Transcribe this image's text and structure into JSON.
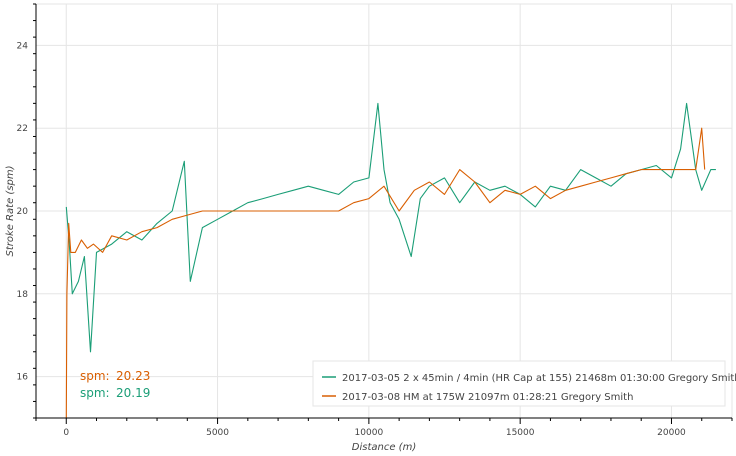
{
  "chart_data": {
    "type": "line",
    "xlabel": "Distance (m)",
    "ylabel": "Stroke Rate (spm)",
    "xlim": [
      -1000,
      22000
    ],
    "ylim": [
      15,
      25
    ],
    "x_ticks": [
      0,
      5000,
      10000,
      15000,
      20000
    ],
    "x_tick_labels": [
      "0",
      "5000",
      "10000",
      "15000",
      "20000"
    ],
    "y_ticks": [
      16,
      18,
      20,
      22,
      24
    ],
    "y_tick_labels": [
      "16",
      "18",
      "20",
      "22",
      "24"
    ],
    "grid": true,
    "legend_position": "bottom-right",
    "series": [
      {
        "name": "2017-03-05 2 x 45min / 4min (HR Cap at 155) 21468m 01:30:00 Gregory Smith",
        "color": "#1b9e77",
        "x": [
          0,
          100,
          200,
          400,
          600,
          800,
          1000,
          1500,
          2000,
          2500,
          3000,
          3500,
          3900,
          4100,
          4500,
          5000,
          5500,
          6000,
          6500,
          7000,
          7500,
          8000,
          8500,
          9000,
          9500,
          10000,
          10300,
          10500,
          10700,
          11000,
          11400,
          11700,
          12000,
          12500,
          13000,
          13500,
          14000,
          14500,
          15000,
          15500,
          16000,
          16500,
          17000,
          17500,
          18000,
          18500,
          19000,
          19500,
          20000,
          20300,
          20500,
          20800,
          21000,
          21300,
          21468
        ],
        "y": [
          20.1,
          19.2,
          18.0,
          18.3,
          18.9,
          16.6,
          19.0,
          19.2,
          19.5,
          19.3,
          19.7,
          20.0,
          21.2,
          18.3,
          19.6,
          19.8,
          20.0,
          20.2,
          20.3,
          20.4,
          20.5,
          20.6,
          20.5,
          20.4,
          20.7,
          20.8,
          22.6,
          21.0,
          20.2,
          19.8,
          18.9,
          20.3,
          20.6,
          20.8,
          20.2,
          20.7,
          20.5,
          20.6,
          20.4,
          20.1,
          20.6,
          20.5,
          21.0,
          20.8,
          20.6,
          20.9,
          21.0,
          21.1,
          20.8,
          21.5,
          22.6,
          21.0,
          20.5,
          21.0,
          21.0
        ]
      },
      {
        "name": "2017-03-08 HM at 175W 21097m 01:28:21 Gregory Smith",
        "color": "#d95f02",
        "x": [
          0,
          20,
          80,
          150,
          300,
          500,
          700,
          900,
          1200,
          1500,
          2000,
          2500,
          3000,
          3500,
          4000,
          4500,
          5000,
          5500,
          6000,
          6500,
          7000,
          7500,
          8000,
          8500,
          9000,
          9500,
          10000,
          10500,
          11000,
          11500,
          12000,
          12500,
          13000,
          13500,
          14000,
          14500,
          15000,
          15500,
          16000,
          16500,
          17000,
          17500,
          18000,
          18500,
          19000,
          19500,
          20000,
          20500,
          20800,
          21000,
          21097
        ],
        "y": [
          15.0,
          18.0,
          19.7,
          19.0,
          19.0,
          19.3,
          19.1,
          19.2,
          19.0,
          19.4,
          19.3,
          19.5,
          19.6,
          19.8,
          19.9,
          20.0,
          20.0,
          20.0,
          20.0,
          20.0,
          20.0,
          20.0,
          20.0,
          20.0,
          20.0,
          20.2,
          20.3,
          20.6,
          20.0,
          20.5,
          20.7,
          20.4,
          21.0,
          20.7,
          20.2,
          20.5,
          20.4,
          20.6,
          20.3,
          20.5,
          20.6,
          20.7,
          20.8,
          20.9,
          21.0,
          21.0,
          21.0,
          21.0,
          21.0,
          22.0,
          21.0
        ]
      }
    ],
    "annotations": [
      {
        "label": "spm:",
        "value": "20.23",
        "color": "#d95f02"
      },
      {
        "label": "spm:",
        "value": "20.19",
        "color": "#1b9e77"
      }
    ]
  }
}
